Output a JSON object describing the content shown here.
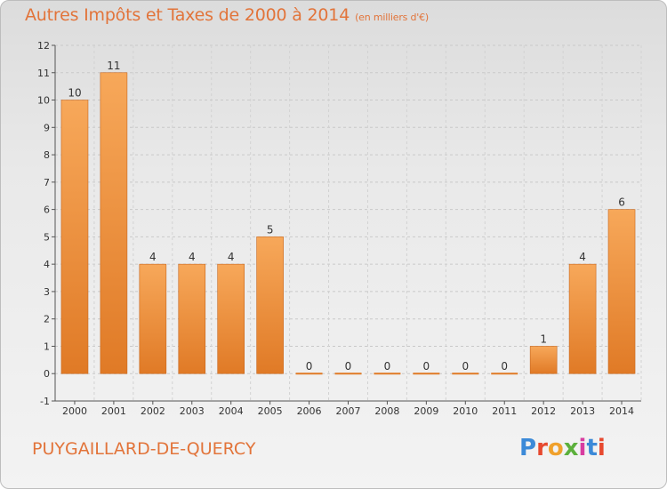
{
  "header": {
    "title": "Autres Impôts et Taxes de 2000 à 2014",
    "unit": "(en milliers d'€)"
  },
  "footer": {
    "commune": "PUYGAILLARD-DE-QUERCY",
    "logo_text": "Proxiti",
    "logo_colors": [
      "#3c8ad8",
      "#e7492f",
      "#f0a12c",
      "#5cb03c",
      "#d83ca0",
      "#3c8ad8",
      "#e7492f"
    ]
  },
  "colors": {
    "accent": "#e2743a",
    "bar_light": "#f7a85a",
    "bar_dark": "#e07a26",
    "bar_border": "#c8661c"
  },
  "chart_data": {
    "type": "bar",
    "title": "Autres Impôts et Taxes de 2000 à 2014",
    "subtitle": "(en milliers d'€)",
    "categories": [
      "2000",
      "2001",
      "2002",
      "2003",
      "2004",
      "2005",
      "2006",
      "2007",
      "2008",
      "2009",
      "2010",
      "2011",
      "2012",
      "2013",
      "2014"
    ],
    "values": [
      10,
      11,
      4,
      4,
      4,
      5,
      0,
      0,
      0,
      0,
      0,
      0,
      1,
      4,
      6
    ],
    "ylim": [
      -1,
      12
    ],
    "yticks": [
      -1,
      0,
      1,
      2,
      3,
      4,
      5,
      6,
      7,
      8,
      9,
      10,
      11,
      12
    ],
    "grid": true,
    "xlabel": "",
    "ylabel": ""
  }
}
